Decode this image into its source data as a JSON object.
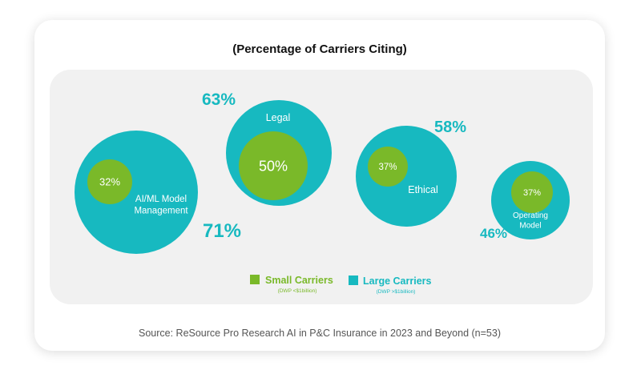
{
  "title": "(Percentage of Carriers Citing)",
  "source": "Source: ReSource Pro Research AI in P&C Insurance in 2023 and Beyond (n=53)",
  "colors": {
    "small": "#7ab929",
    "large": "#17b9c0"
  },
  "legend": {
    "small": {
      "label": "Small Carriers",
      "sub": "(DWP <$1billion)"
    },
    "large": {
      "label": "Large Carriers",
      "sub": "(DWP >$1billion)"
    }
  },
  "chart_data": {
    "type": "bubble",
    "title": "(Percentage of Carriers Citing)",
    "categories": [
      "AI/ML Model Management",
      "Legal",
      "Ethical",
      "Operating Model"
    ],
    "category_labels": [
      [
        "AI/ML Model",
        "Management"
      ],
      [
        "Legal"
      ],
      [
        "Ethical"
      ],
      [
        "Operating",
        "Model"
      ]
    ],
    "series": [
      {
        "name": "Small Carriers",
        "values": [
          32,
          50,
          37,
          37
        ],
        "labels": [
          "32%",
          "50%",
          "37%",
          "37%"
        ]
      },
      {
        "name": "Large Carriers",
        "values": [
          71,
          63,
          58,
          46
        ],
        "labels": [
          "71%",
          "63%",
          "58%",
          "46%"
        ]
      }
    ],
    "legend": "bottom"
  }
}
